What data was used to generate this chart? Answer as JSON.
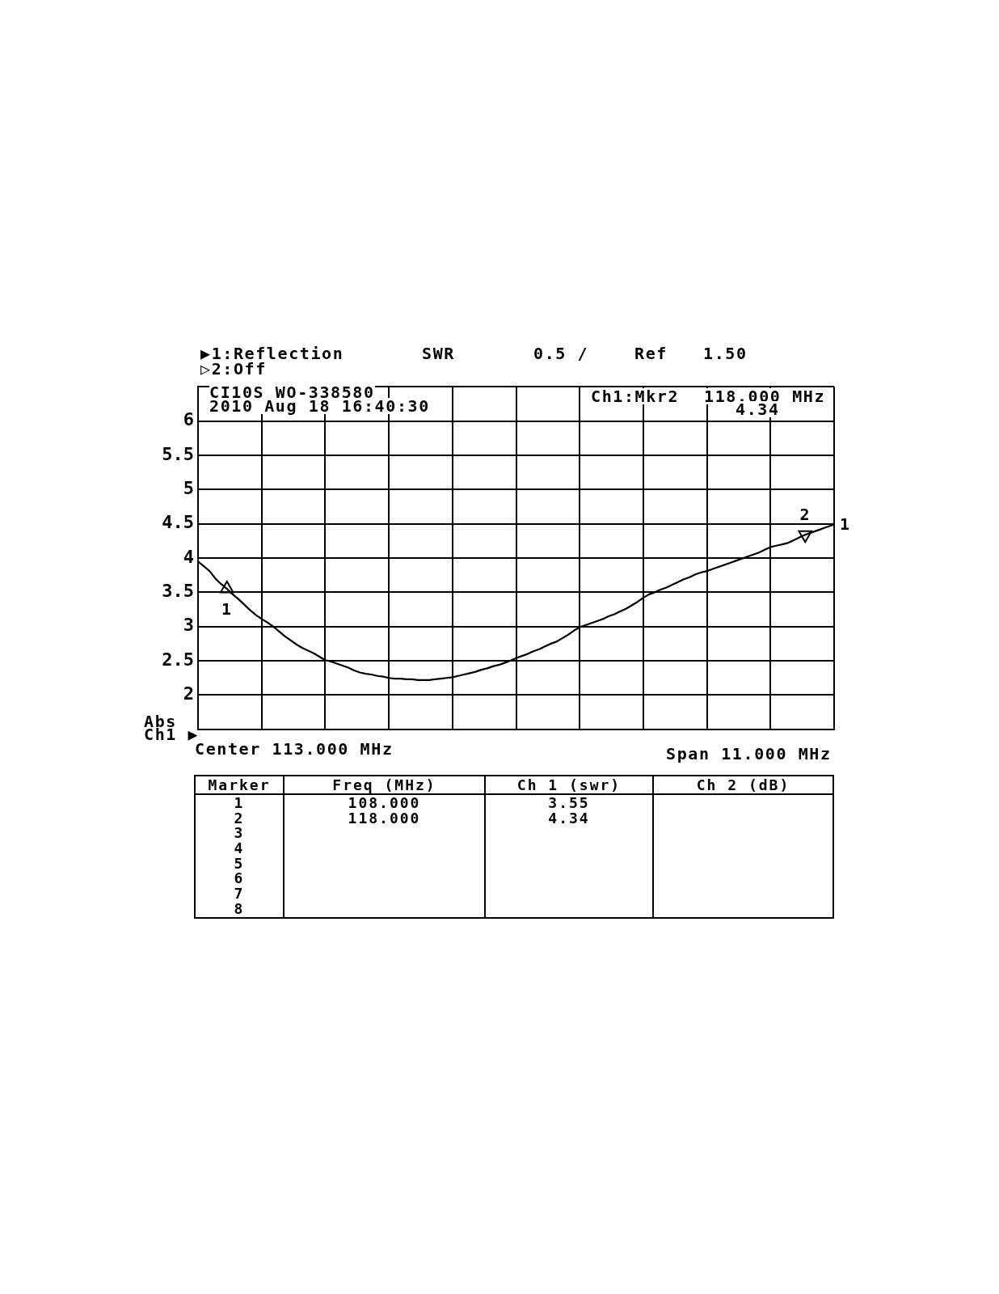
{
  "chart_data": {
    "type": "line",
    "categories": [
      null,
      null,
      null,
      null,
      null,
      null,
      null,
      null,
      null,
      null,
      null,
      null,
      null,
      null,
      null,
      null,
      null,
      null,
      null,
      null,
      null,
      null,
      null,
      null,
      null,
      null,
      null,
      null,
      null,
      null,
      null,
      null,
      null,
      null,
      null,
      null,
      null,
      null,
      null,
      null,
      null,
      null,
      null,
      null,
      null,
      null,
      null,
      null,
      null,
      null,
      null,
      null,
      null,
      null,
      null,
      null,
      null,
      null,
      null,
      null,
      null,
      null,
      null,
      null,
      null,
      null,
      null,
      null,
      null,
      null,
      null,
      null,
      null,
      null,
      null,
      null,
      null,
      null,
      null,
      null,
      null,
      null,
      null,
      null,
      null,
      null,
      null,
      null,
      null,
      null,
      null,
      null,
      null,
      null,
      null,
      null,
      null,
      null,
      null,
      null,
      null,
      null,
      null,
      null,
      null,
      null,
      null,
      null,
      null,
      null,
      null
    ],
    "ylim": [
      1.5,
      6.5
    ],
    "yticks": [
      {
        "value": 1.5,
        "label": null
      },
      2,
      2.5,
      3,
      3.5,
      4,
      4.5,
      5,
      5.5,
      6,
      {
        "value": 6.5,
        "label": null
      }
    ],
    "tick_labels": "y",
    "grid": true,
    "series": [
      {
        "type": "line",
        "color": "#000000",
        "marker": "none",
        "line_style": "solid",
        "values": [
          3.95,
          3.88,
          3.81,
          3.7,
          3.62,
          3.55,
          3.47,
          3.4,
          3.32,
          3.24,
          3.17,
          3.11,
          3.06,
          3.0,
          2.93,
          2.86,
          2.8,
          2.74,
          2.69,
          2.65,
          2.61,
          2.56,
          2.51,
          2.49,
          2.46,
          2.43,
          2.4,
          2.36,
          2.33,
          2.31,
          2.3,
          2.28,
          2.27,
          2.25,
          2.24,
          2.24,
          2.23,
          2.23,
          2.22,
          2.22,
          2.22,
          2.23,
          2.24,
          2.25,
          2.26,
          2.28,
          2.3,
          2.32,
          2.34,
          2.37,
          2.39,
          2.42,
          2.44,
          2.47,
          2.5,
          2.54,
          2.57,
          2.6,
          2.64,
          2.67,
          2.71,
          2.75,
          2.78,
          2.83,
          2.88,
          2.94,
          2.99,
          3.02,
          3.05,
          3.08,
          3.11,
          3.15,
          3.18,
          3.22,
          3.26,
          3.31,
          3.36,
          3.42,
          3.47,
          3.5,
          3.54,
          3.57,
          3.61,
          3.65,
          3.69,
          3.72,
          3.76,
          3.79,
          3.81,
          3.84,
          3.87,
          3.9,
          3.93,
          3.96,
          3.99,
          4.02,
          4.05,
          4.08,
          4.12,
          4.16,
          4.18,
          4.2,
          4.22,
          4.26,
          4.3,
          4.34,
          4.37,
          4.4,
          4.43,
          4.46,
          4.49
        ]
      },
      {
        "type": "scatter",
        "color": "#000000",
        "marker": "triangle",
        "values": [
          null,
          null,
          null,
          null,
          null,
          3.55,
          null,
          null,
          null,
          null,
          null,
          null,
          null,
          null,
          null,
          null,
          null,
          null,
          null,
          null,
          null,
          null,
          null,
          null,
          null,
          null,
          null,
          null,
          null,
          null,
          null,
          null,
          null,
          null,
          null,
          null,
          null,
          null,
          null,
          null,
          null,
          null,
          null,
          null,
          null,
          null,
          null,
          null,
          null,
          null,
          null,
          null,
          null,
          null,
          null,
          null,
          null,
          null,
          null,
          null,
          null,
          null,
          null,
          null,
          null,
          null,
          null,
          null,
          null,
          null,
          null,
          null,
          null,
          null,
          null,
          null,
          null,
          null,
          null,
          null,
          null,
          null,
          null,
          null,
          null,
          null,
          null,
          null,
          null,
          null,
          null,
          null,
          null,
          null,
          null,
          null,
          null,
          null,
          null,
          null,
          null,
          null,
          null,
          null,
          null,
          4.34,
          null,
          null,
          null,
          null,
          null
        ]
      }
    ],
    "annotations": [
      "▶1:Reflection",
      "▷2:Off",
      "SWR",
      "0.5 /",
      "Ref",
      "1.50",
      "CI10S WO-338580",
      "2010 Aug 18 16:40:30",
      "Ch1:Mkr2",
      "118.000 MHz",
      "4.34",
      "1",
      "2",
      "1",
      "Abs",
      "Ch1 ▶",
      "Center 113.000 MHz",
      "Span 11.000 MHz",
      "Marker",
      "Freq (MHz)",
      "Ch 1 (swr)",
      "Ch 2 (dB)",
      "1",
      "2",
      "3",
      "4",
      "5",
      "6",
      "7",
      "8",
      "108.000",
      "118.000",
      "3.55",
      "4.34"
    ]
  }
}
